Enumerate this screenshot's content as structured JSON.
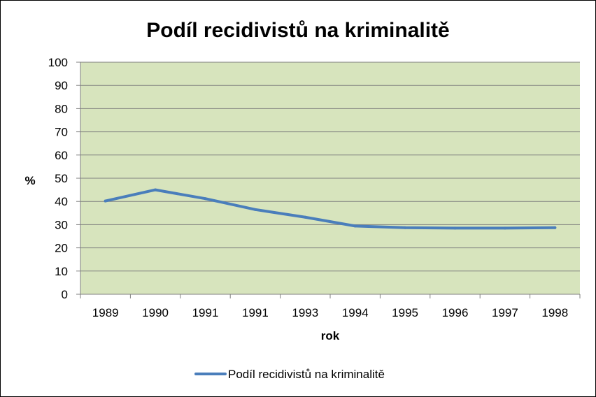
{
  "chart_data": {
    "type": "line",
    "title": "Podíl recidivistů na kriminalitě",
    "xlabel": "rok",
    "ylabel": "%",
    "categories": [
      "1989",
      "1990",
      "1991",
      "1991",
      "1993",
      "1994",
      "1995",
      "1996",
      "1997",
      "1998"
    ],
    "series": [
      {
        "name": "Podíl recidivistů na kriminalitě",
        "values": [
          40.2,
          45.0,
          41.2,
          36.5,
          33.2,
          29.4,
          28.7,
          28.5,
          28.5,
          28.7
        ],
        "color": "#4a7ebb"
      }
    ],
    "ylim": [
      0,
      100
    ],
    "yticks": [
      "0",
      "10",
      "20",
      "30",
      "40",
      "50",
      "60",
      "70",
      "80",
      "90",
      "100"
    ],
    "grid": true,
    "legend": "bottom",
    "plot_background": "#d7e4bd",
    "grid_color": "#7f7f7f"
  }
}
